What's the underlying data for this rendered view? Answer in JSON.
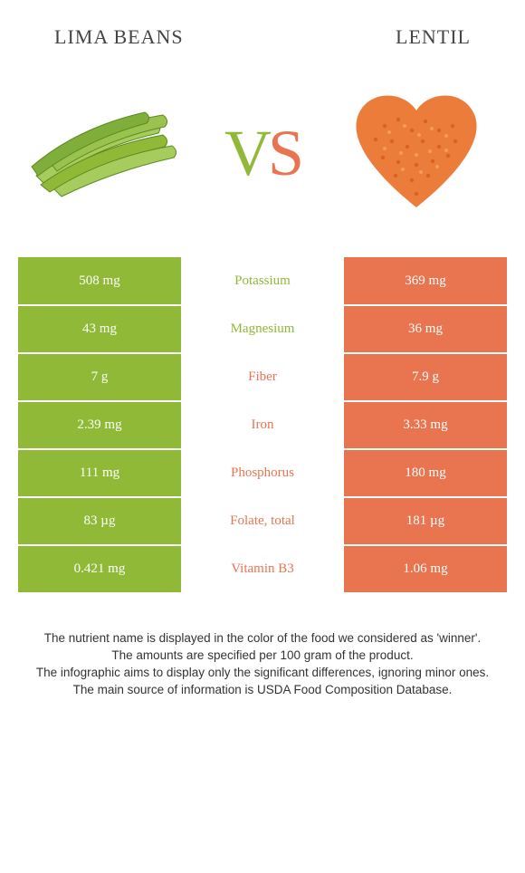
{
  "header": {
    "left_title": "Lima beans",
    "right_title": "Lentil"
  },
  "vs": {
    "v": "V",
    "s": "S"
  },
  "colors": {
    "green": "#8fb936",
    "orange": "#e97450",
    "bean_green": "#7fae3a",
    "bean_light": "#a7cc5e",
    "lentil_orange": "#ec7c3a"
  },
  "rows": [
    {
      "left": "508 mg",
      "label": "Potassium",
      "right": "369 mg",
      "winner": "left"
    },
    {
      "left": "43 mg",
      "label": "Magnesium",
      "right": "36 mg",
      "winner": "left"
    },
    {
      "left": "7 g",
      "label": "Fiber",
      "right": "7.9 g",
      "winner": "right"
    },
    {
      "left": "2.39 mg",
      "label": "Iron",
      "right": "3.33 mg",
      "winner": "right"
    },
    {
      "left": "111 mg",
      "label": "Phosphorus",
      "right": "180 mg",
      "winner": "right"
    },
    {
      "left": "83 µg",
      "label": "Folate, total",
      "right": "181 µg",
      "winner": "right"
    },
    {
      "left": "0.421 mg",
      "label": "Vitamin B3",
      "right": "1.06 mg",
      "winner": "right"
    }
  ],
  "footer": {
    "line1": "The nutrient name is displayed in the color of the food we considered as 'winner'.",
    "line2": "The amounts are specified per 100 gram of the product.",
    "line3": "The infographic aims to display only the significant differences, ignoring minor ones.",
    "line4": "The main source of information is USDA Food Composition Database."
  }
}
